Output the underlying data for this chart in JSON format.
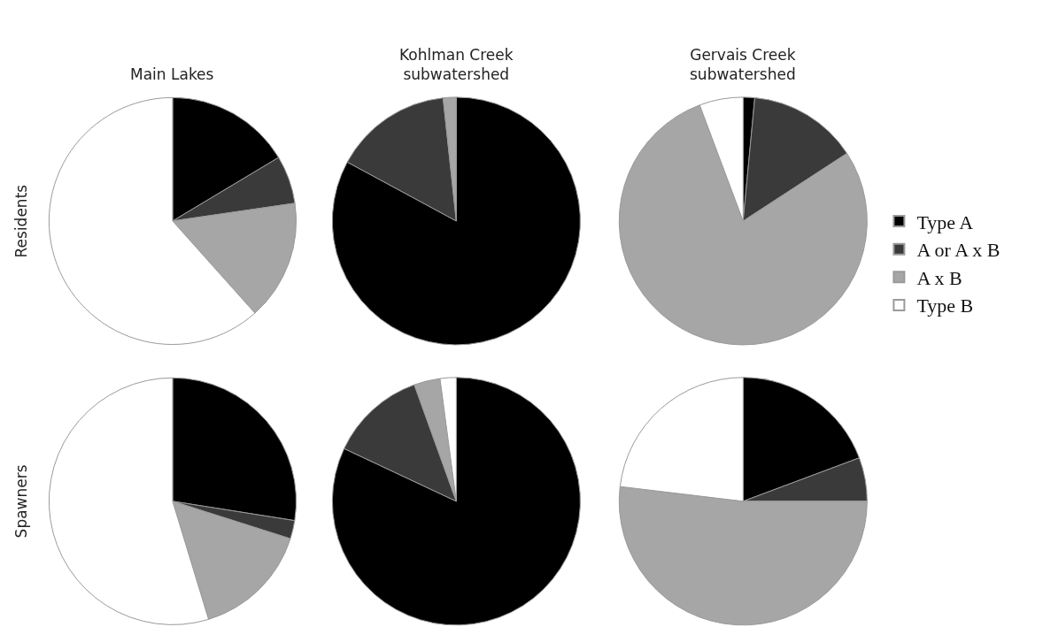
{
  "chart_data": [
    {
      "type": "pie",
      "title": "Main Lakes",
      "ylabel": "Residents",
      "categories": [
        "Type A",
        "A or A x B",
        "A x B",
        "Type B"
      ],
      "values": [
        16.4,
        6.3,
        15.7,
        61.6
      ],
      "colors": [
        "#000000",
        "#3a3a3a",
        "#a6a6a6",
        "#ffffff"
      ],
      "legend": "right"
    },
    {
      "type": "pie",
      "title": "Kohlman Creek\nsubwatershed",
      "categories": [
        null,
        null,
        null,
        null
      ],
      "values": [
        82.9,
        15.4,
        1.7,
        0
      ],
      "colors": [
        "#000000",
        "#3a3a3a",
        "#a6a6a6",
        "#ffffff"
      ]
    },
    {
      "type": "pie",
      "title": "Gervais Creek\nsubwatershed",
      "categories": [
        null,
        null,
        null,
        null
      ],
      "values": [
        1.5,
        14.3,
        78.5,
        5.7
      ],
      "colors": [
        "#000000",
        "#3a3a3a",
        "#a6a6a6",
        "#ffffff"
      ]
    },
    {
      "type": "pie",
      "ylabel": "Spawners",
      "categories": [
        null,
        null,
        null,
        null
      ],
      "values": [
        27.5,
        2.4,
        15.4,
        54.7
      ],
      "colors": [
        "#000000",
        "#3a3a3a",
        "#a6a6a6",
        "#ffffff"
      ]
    },
    {
      "type": "pie",
      "categories": [
        null,
        null,
        null,
        null
      ],
      "values": [
        82,
        12.5,
        3.4,
        2.1
      ],
      "colors": [
        "#000000",
        "#3a3a3a",
        "#a6a6a6",
        "#ffffff"
      ]
    },
    {
      "type": "pie",
      "categories": [
        null,
        null,
        null,
        null
      ],
      "values": [
        19.3,
        5.7,
        51.9,
        23.1
      ],
      "colors": [
        "#000000",
        "#3a3a3a",
        "#a6a6a6",
        "#ffffff"
      ]
    }
  ]
}
